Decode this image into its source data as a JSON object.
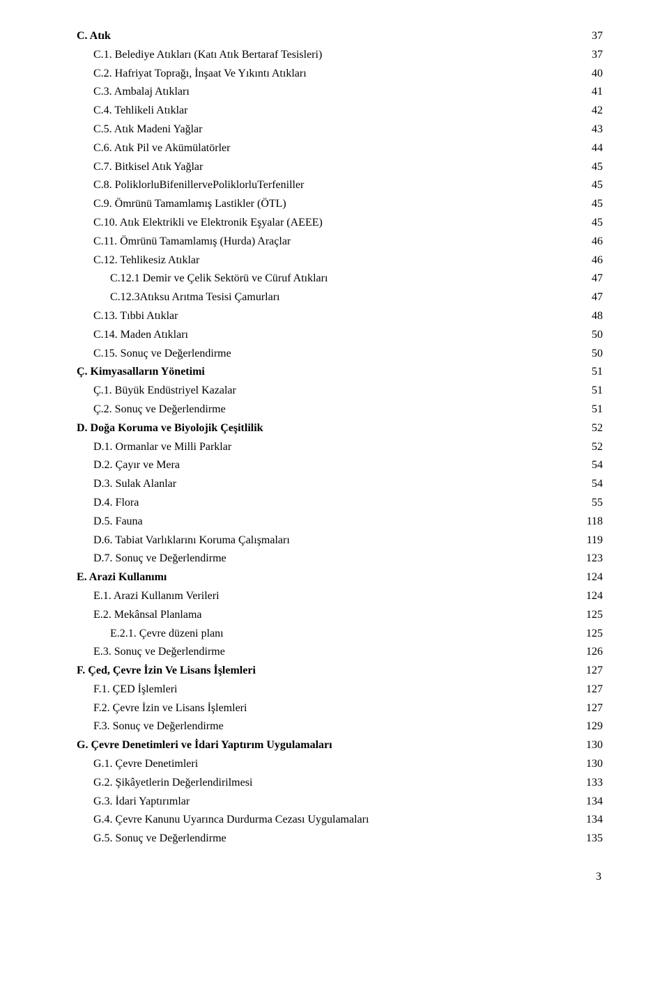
{
  "entries": [
    {
      "label": "C. Atık",
      "page": "37",
      "bold": true,
      "indent": 0
    },
    {
      "label": "C.1. Belediye Atıkları (Katı Atık Bertaraf Tesisleri)",
      "page": "37",
      "bold": false,
      "indent": 1
    },
    {
      "label": "C.2. Hafriyat Toprağı, İnşaat Ve Yıkıntı Atıkları",
      "page": "40",
      "bold": false,
      "indent": 1
    },
    {
      "label": "C.3. Ambalaj Atıkları",
      "page": "41",
      "bold": false,
      "indent": 1
    },
    {
      "label": "C.4. Tehlikeli Atıklar",
      "page": "42",
      "bold": false,
      "indent": 1
    },
    {
      "label": "C.5. Atık Madeni Yağlar",
      "page": "43",
      "bold": false,
      "indent": 1
    },
    {
      "label": "C.6. Atık Pil ve Akümülatörler",
      "page": "44",
      "bold": false,
      "indent": 1
    },
    {
      "label": "C.7. Bitkisel Atık Yağlar",
      "page": "45",
      "bold": false,
      "indent": 1
    },
    {
      "label": "C.8. PoliklorluBifenillervePoliklorluTerfeniller",
      "page": "45",
      "bold": false,
      "indent": 1
    },
    {
      "label": "C.9. Ömrünü Tamamlamış Lastikler (ÖTL)",
      "page": "45",
      "bold": false,
      "indent": 1
    },
    {
      "label": "C.10. Atık Elektrikli ve Elektronik Eşyalar (AEEE)",
      "page": "45",
      "bold": false,
      "indent": 1
    },
    {
      "label": "C.11. Ömrünü Tamamlamış (Hurda) Araçlar",
      "page": "46",
      "bold": false,
      "indent": 1
    },
    {
      "label": "C.12. Tehlikesiz Atıklar",
      "page": "46",
      "bold": false,
      "indent": 1
    },
    {
      "label": "C.12.1 Demir ve Çelik Sektörü ve Cüruf Atıkları",
      "page": "47",
      "bold": false,
      "indent": 2
    },
    {
      "label": "C.12.3Atıksu Arıtma Tesisi Çamurları",
      "page": "47",
      "bold": false,
      "indent": 2
    },
    {
      "label": "C.13. Tıbbi Atıklar",
      "page": "48",
      "bold": false,
      "indent": 1
    },
    {
      "label": "C.14. Maden Atıkları",
      "page": "50",
      "bold": false,
      "indent": 1
    },
    {
      "label": "C.15. Sonuç ve Değerlendirme",
      "page": "50",
      "bold": false,
      "indent": 1
    },
    {
      "label": "Ç. Kimyasalların Yönetimi",
      "page": "51",
      "bold": true,
      "indent": 0
    },
    {
      "label": "Ç.1. Büyük Endüstriyel Kazalar",
      "page": "51",
      "bold": false,
      "indent": 1
    },
    {
      "label": "Ç.2. Sonuç ve Değerlendirme",
      "page": "51",
      "bold": false,
      "indent": 1
    },
    {
      "label": "D. Doğa Koruma ve Biyolojik Çeşitlilik",
      "page": "52",
      "bold": true,
      "indent": 0
    },
    {
      "label": "D.1. Ormanlar ve Milli Parklar",
      "page": "52",
      "bold": false,
      "indent": 1
    },
    {
      "label": "D.2. Çayır ve Mera",
      "page": "54",
      "bold": false,
      "indent": 1
    },
    {
      "label": "D.3. Sulak Alanlar",
      "page": "54",
      "bold": false,
      "indent": 1
    },
    {
      "label": "D.4. Flora",
      "page": "55",
      "bold": false,
      "indent": 1
    },
    {
      "label": "D.5. Fauna",
      "page": "118",
      "bold": false,
      "indent": 1
    },
    {
      "label": "D.6. Tabiat Varlıklarını Koruma Çalışmaları",
      "page": "119",
      "bold": false,
      "indent": 1
    },
    {
      "label": "D.7. Sonuç ve Değerlendirme",
      "page": "123",
      "bold": false,
      "indent": 1
    },
    {
      "label": "E. Arazi Kullanımı",
      "page": "124",
      "bold": true,
      "indent": 0
    },
    {
      "label": "E.1. Arazi Kullanım Verileri",
      "page": "124",
      "bold": false,
      "indent": 1
    },
    {
      "label": "E.2. Mekânsal Planlama",
      "page": "125",
      "bold": false,
      "indent": 1
    },
    {
      "label": "E.2.1. Çevre düzeni planı",
      "page": "125",
      "bold": false,
      "indent": 2
    },
    {
      "label": "E.3. Sonuç ve Değerlendirme",
      "page": "126",
      "bold": false,
      "indent": 1
    },
    {
      "label": "F. Çed, Çevre İzin Ve Lisans İşlemleri",
      "page": "127",
      "bold": true,
      "indent": 0
    },
    {
      "label": "F.1. ÇED İşlemleri",
      "page": "127",
      "bold": false,
      "indent": 1
    },
    {
      "label": "F.2. Çevre İzin ve Lisans İşlemleri",
      "page": "127",
      "bold": false,
      "indent": 1
    },
    {
      "label": "F.3. Sonuç ve Değerlendirme",
      "page": "129",
      "bold": false,
      "indent": 1
    },
    {
      "label": "G. Çevre Denetimleri ve İdari Yaptırım Uygulamaları",
      "page": "130",
      "bold": true,
      "indent": 0
    },
    {
      "label": "G.1. Çevre Denetimleri",
      "page": "130",
      "bold": false,
      "indent": 1
    },
    {
      "label": "G.2. Şikâyetlerin Değerlendirilmesi",
      "page": "133",
      "bold": false,
      "indent": 1
    },
    {
      "label": "G.3. İdari Yaptırımlar",
      "page": "134",
      "bold": false,
      "indent": 1
    },
    {
      "label": "G.4. Çevre Kanunu Uyarınca Durdurma Cezası Uygulamaları",
      "page": "134",
      "bold": false,
      "indent": 1
    },
    {
      "label": "G.5. Sonuç ve Değerlendirme",
      "page": "135",
      "bold": false,
      "indent": 1
    }
  ],
  "page_number": "3"
}
